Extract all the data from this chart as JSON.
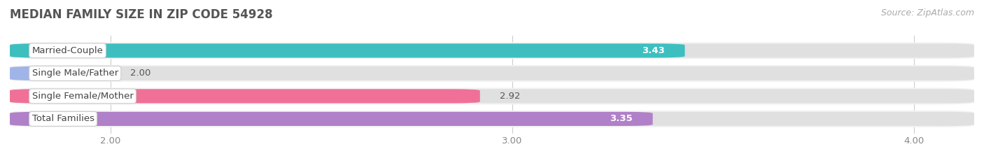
{
  "title": "MEDIAN FAMILY SIZE IN ZIP CODE 54928",
  "source": "Source: ZipAtlas.com",
  "categories": [
    "Married-Couple",
    "Single Male/Father",
    "Single Female/Mother",
    "Total Families"
  ],
  "values": [
    3.43,
    2.0,
    2.92,
    3.35
  ],
  "bar_colors": [
    "#3dbfbf",
    "#a0b4e8",
    "#f07098",
    "#b080c8"
  ],
  "xlim_left": 1.75,
  "xlim_right": 4.15,
  "xticks": [
    2.0,
    3.0,
    4.0
  ],
  "xtick_labels": [
    "2.00",
    "3.00",
    "4.00"
  ],
  "background_color": "#ffffff",
  "row_bg_color": "#f2f2f2",
  "title_fontsize": 12,
  "label_fontsize": 9.5,
  "value_fontsize": 9.5,
  "source_fontsize": 9
}
